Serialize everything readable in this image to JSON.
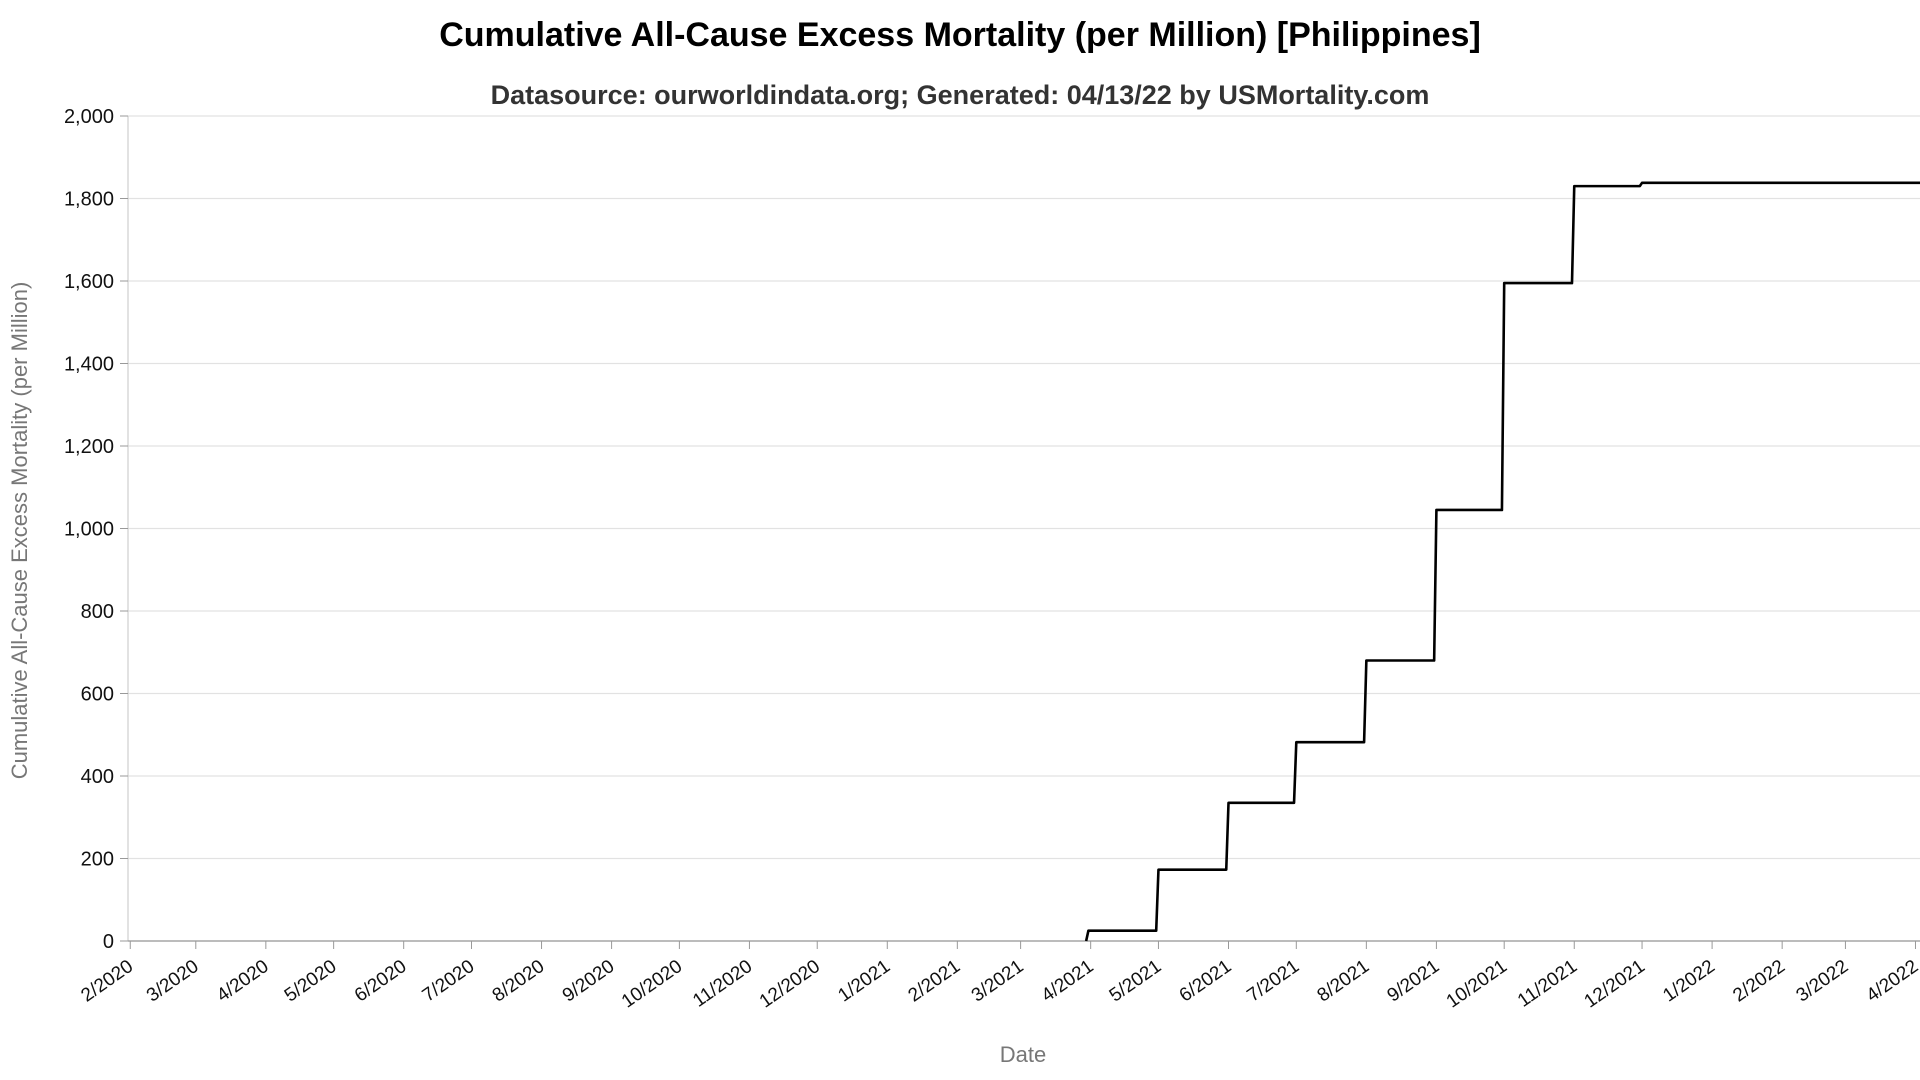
{
  "chart_data": {
    "type": "line",
    "title": "Cumulative All-Cause Excess Mortality (per Million) [Philippines]",
    "subtitle": "Datasource: ourworldindata.org; Generated: 04/13/22 by USMortality.com",
    "xlabel": "Date",
    "ylabel": "Cumulative All-Cause Excess Mortality (per Million)",
    "ylim": [
      0,
      2000
    ],
    "yticks": [
      0,
      200,
      400,
      600,
      800,
      1000,
      1200,
      1400,
      1600,
      1800,
      2000
    ],
    "ytick_labels": [
      "0",
      "200",
      "400",
      "600",
      "800",
      "1,000",
      "1,200",
      "1,400",
      "1,600",
      "1,800",
      "2,000"
    ],
    "xlim": [
      "2020-01-31",
      "2022-04-03"
    ],
    "xticks": [
      "2020-02-01",
      "2020-03-01",
      "2020-04-01",
      "2020-05-01",
      "2020-06-01",
      "2020-07-01",
      "2020-08-01",
      "2020-09-01",
      "2020-10-01",
      "2020-11-01",
      "2020-12-01",
      "2021-01-01",
      "2021-02-01",
      "2021-03-01",
      "2021-04-01",
      "2021-05-01",
      "2021-06-01",
      "2021-07-01",
      "2021-08-01",
      "2021-09-01",
      "2021-10-01",
      "2021-11-01",
      "2021-12-01",
      "2022-01-01",
      "2022-02-01",
      "2022-03-01",
      "2022-04-01"
    ],
    "xtick_labels": [
      "2/2020",
      "3/2020",
      "4/2020",
      "5/2020",
      "6/2020",
      "7/2020",
      "8/2020",
      "9/2020",
      "10/2020",
      "11/2020",
      "12/2020",
      "1/2021",
      "2/2021",
      "3/2021",
      "4/2021",
      "5/2021",
      "6/2021",
      "7/2021",
      "8/2021",
      "9/2021",
      "10/2021",
      "11/2021",
      "12/2021",
      "1/2022",
      "2/2022",
      "3/2022",
      "4/2022"
    ],
    "grid": true,
    "series": [
      {
        "color": "#000000",
        "points": [
          {
            "x": "2021-03-30",
            "y": 0
          },
          {
            "x": "2021-03-31",
            "y": 25
          },
          {
            "x": "2021-04-30",
            "y": 25
          },
          {
            "x": "2021-05-01",
            "y": 173
          },
          {
            "x": "2021-05-31",
            "y": 173
          },
          {
            "x": "2021-06-01",
            "y": 335
          },
          {
            "x": "2021-06-30",
            "y": 335
          },
          {
            "x": "2021-07-01",
            "y": 482
          },
          {
            "x": "2021-07-31",
            "y": 482
          },
          {
            "x": "2021-08-01",
            "y": 680
          },
          {
            "x": "2021-08-31",
            "y": 680
          },
          {
            "x": "2021-09-01",
            "y": 1045
          },
          {
            "x": "2021-09-30",
            "y": 1045
          },
          {
            "x": "2021-10-01",
            "y": 1595
          },
          {
            "x": "2021-10-31",
            "y": 1595
          },
          {
            "x": "2021-11-01",
            "y": 1830
          },
          {
            "x": "2021-11-30",
            "y": 1830
          },
          {
            "x": "2021-12-01",
            "y": 1838
          },
          {
            "x": "2022-04-03",
            "y": 1838
          }
        ]
      }
    ]
  }
}
